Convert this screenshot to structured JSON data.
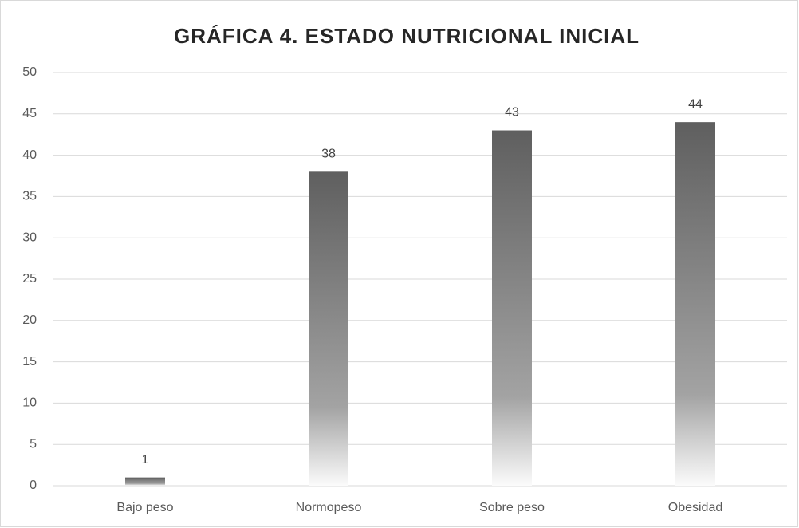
{
  "chart_data": {
    "type": "bar",
    "title": "GRÁFICA 4. ESTADO NUTRICIONAL INICIAL",
    "categories": [
      "Bajo peso",
      "Normopeso",
      "Sobre peso",
      "Obesidad"
    ],
    "values": [
      1,
      38,
      43,
      44
    ],
    "color": "#5f5f5f",
    "ylim": [
      0,
      50
    ],
    "yticks": [
      0,
      5,
      10,
      15,
      20,
      25,
      30,
      35,
      40,
      45,
      50
    ],
    "grid": true
  }
}
